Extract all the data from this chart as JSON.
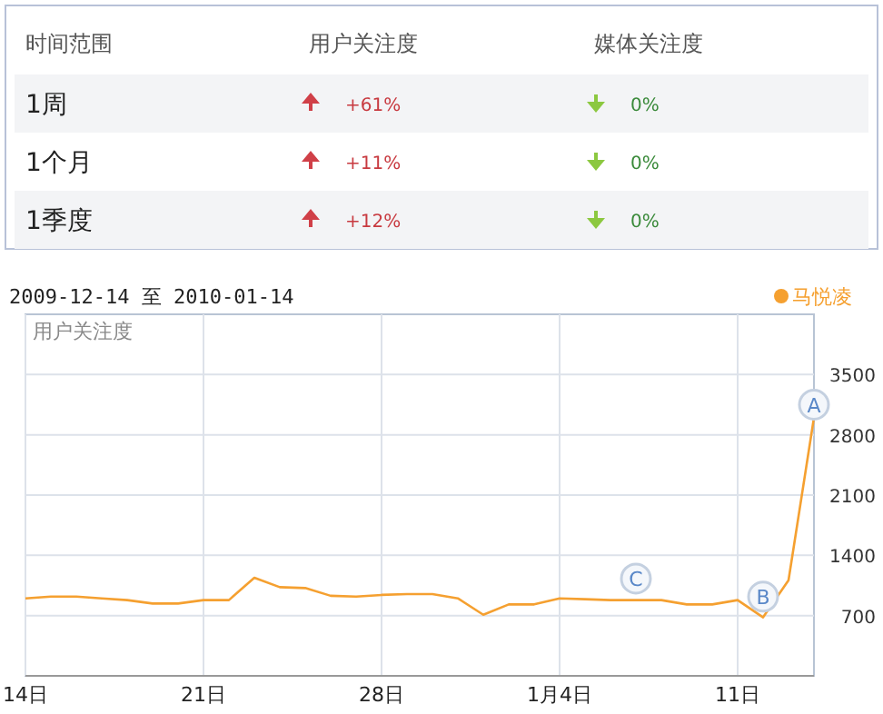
{
  "chart_data": [
    {
      "type": "other",
      "categories": [
        "时间范围",
        "用户关注度",
        "媒体关注度"
      ],
      "cell_labels": [
        [
          "1周",
          "+61%",
          "0%"
        ],
        [
          "1个月",
          "+11%",
          "0%"
        ],
        [
          "1季度",
          "+12%",
          "0%"
        ]
      ]
    },
    {
      "type": "line",
      "title": "2009-12-14 至 2010-01-14",
      "ylabel": "用户关注度",
      "x": [
        "2009-12-14",
        "2009-12-15",
        "2009-12-16",
        "2009-12-17",
        "2009-12-18",
        "2009-12-19",
        "2009-12-20",
        "2009-12-21",
        "2009-12-22",
        "2009-12-23",
        "2009-12-24",
        "2009-12-25",
        "2009-12-26",
        "2009-12-27",
        "2009-12-28",
        "2009-12-29",
        "2009-12-30",
        "2009-12-31",
        "2010-01-01",
        "2010-01-02",
        "2010-01-03",
        "2010-01-04",
        "2010-01-05",
        "2010-01-06",
        "2010-01-07",
        "2010-01-08",
        "2010-01-09",
        "2010-01-10",
        "2010-01-11",
        "2010-01-12",
        "2010-01-13",
        "2010-01-14"
      ],
      "series": [
        {
          "name": "马悦凌",
          "color": "#f5a030",
          "values": [
            900,
            920,
            920,
            900,
            880,
            840,
            840,
            880,
            880,
            1140,
            1030,
            1020,
            930,
            920,
            940,
            950,
            950,
            900,
            710,
            830,
            830,
            900,
            890,
            880,
            880,
            880,
            830,
            830,
            880,
            680,
            1110,
            3000
          ]
        }
      ],
      "xlim": [
        "2009-12-14",
        "2010-01-14"
      ],
      "xticks": [
        {
          "value": "2009-12-14",
          "label": "14日"
        },
        {
          "value": "2009-12-21",
          "label": "21日"
        },
        {
          "value": "2009-12-28",
          "label": "28日"
        },
        {
          "value": "2010-01-04",
          "label": "1月4日"
        },
        {
          "value": "2010-01-11",
          "label": "11日"
        }
      ],
      "ylim": [
        0,
        4200
      ],
      "yticks": [
        700,
        1400,
        2100,
        2800,
        3500
      ],
      "grid": true,
      "legend": "top right",
      "marker": "none",
      "line_style": "solid",
      "annotations": [
        {
          "text": "A",
          "x": "2010-01-14",
          "y": 3150
        },
        {
          "text": "B",
          "x": "2010-01-12",
          "y": 920
        },
        {
          "text": "C",
          "x": "2010-01-07",
          "y": 1130
        }
      ]
    }
  ]
}
